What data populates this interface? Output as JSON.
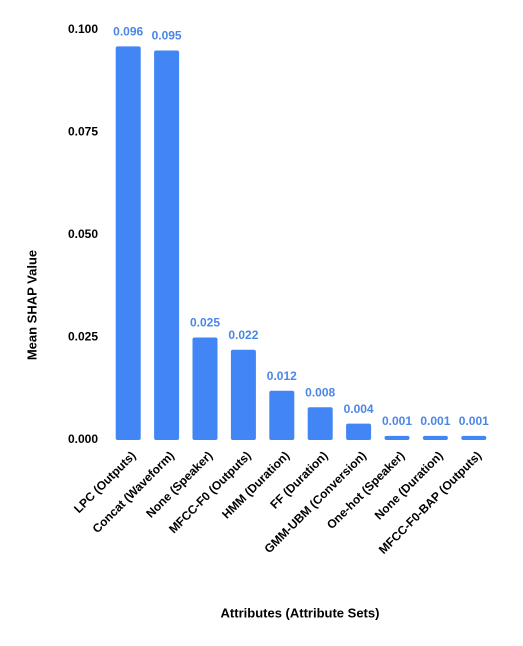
{
  "chart_data": {
    "type": "bar",
    "categories": [
      "LPC (Outputs)",
      "Concat (Waveform)",
      "None (Speaker)",
      "MFCC-F0 (Outputs)",
      "HMM (Duration)",
      "FF (Duration)",
      "GMM-UBM (Conversion)",
      "One-hot (Speaker)",
      "None (Duration)",
      "MFCC-F0-BAP (Outputs)"
    ],
    "values": [
      0.096,
      0.095,
      0.025,
      0.022,
      0.012,
      0.008,
      0.004,
      0.001,
      0.001,
      0.001
    ],
    "color": "#4285f4",
    "x_label": "Attributes (Attribute Sets)",
    "y_label": "Mean SHAP Value",
    "ylim": [
      0,
      0.1
    ],
    "yticks": [
      {
        "value": 0,
        "label": "0.000"
      },
      {
        "value": 0.025,
        "label": "0.025"
      },
      {
        "value": 0.05,
        "label": "0.050"
      },
      {
        "value": 0.075,
        "label": "0.075"
      },
      {
        "value": 0.1,
        "label": "0.100"
      }
    ],
    "grid": false
  }
}
